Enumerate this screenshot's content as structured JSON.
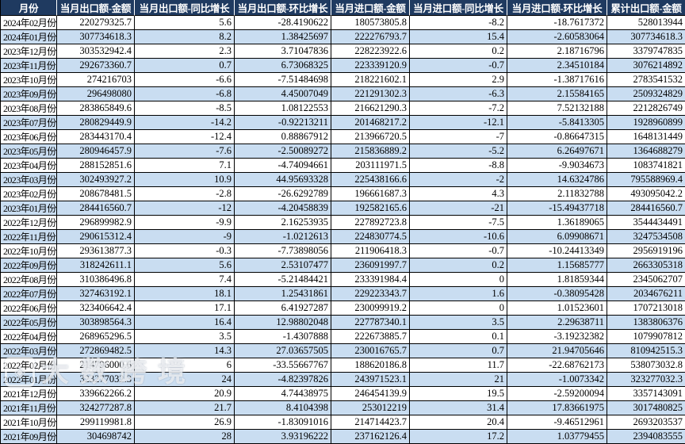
{
  "table": {
    "columns": [
      "月份",
      "当月出口额-金额",
      "当月出口额-同比增长",
      "当月出口额-环比增长",
      "当月进口额-金额",
      "当月进口额-同比增长",
      "当月进口额-环比增长",
      "累计出口额-金额"
    ],
    "rows": [
      [
        "2024年02月份",
        "220279325.7",
        "5.6",
        "-28.4190622",
        "180573805.8",
        "-8.2",
        "-18.7617372",
        "528013944"
      ],
      [
        "2024年01月份",
        "307734618.3",
        "8.2",
        "1.38425697",
        "222276793.7",
        "15.4",
        "-2.60583064",
        "307734618.3"
      ],
      [
        "2023年12月份",
        "303532942.4",
        "2.3",
        "3.71047836",
        "228223922.6",
        "0.2",
        "2.18716796",
        "3379747835"
      ],
      [
        "2023年11月份",
        "292673360.7",
        "0.7",
        "6.73068325",
        "223339120.9",
        "-0.7",
        "2.34510184",
        "3076214892"
      ],
      [
        "2023年10月份",
        "274216703",
        "-6.6",
        "-7.51484698",
        "218221602.1",
        "2.9",
        "-1.38717616",
        "2783541532"
      ],
      [
        "2023年09月份",
        "296498080",
        "-6.8",
        "4.45007049",
        "221291302.3",
        "-6.3",
        "2.15584165",
        "2509324829"
      ],
      [
        "2023年08月份",
        "283865849.6",
        "-8.5",
        "1.08122553",
        "216621290.3",
        "-7.2",
        "7.52132188",
        "2212826749"
      ],
      [
        "2023年07月份",
        "280829449.9",
        "-14.2",
        "-0.92213211",
        "201468217.2",
        "-12.1",
        "-5.8413305",
        "1928960899"
      ],
      [
        "2023年06月份",
        "283443170.4",
        "-12.4",
        "0.88867912",
        "213966720.5",
        "-7",
        "-0.86647315",
        "1648131449"
      ],
      [
        "2023年05月份",
        "280946457.9",
        "-7.6",
        "-2.50089272",
        "215836889.2",
        "-5.2",
        "6.26497671",
        "1364688279"
      ],
      [
        "2023年04月份",
        "288152851.6",
        "7.1",
        "-4.74094661",
        "203111971.5",
        "-8.8",
        "-9.9034673",
        "1083741821"
      ],
      [
        "2023年03月份",
        "302493927.2",
        "10.9",
        "44.95693328",
        "225438166.6",
        "-2",
        "14.6324786",
        "795588969.4"
      ],
      [
        "2023年02月份",
        "208678481.5",
        "-2.8",
        "-26.6292789",
        "196661687.3",
        "4.3",
        "2.11832788",
        "493095042.2"
      ],
      [
        "2023年01月份",
        "284416560.7",
        "-12",
        "-4.20458839",
        "192582165.6",
        "-21",
        "-15.49437718",
        "284416560.7"
      ],
      [
        "2022年12月份",
        "296899982.9",
        "-9.9",
        "2.16253935",
        "227892723.8",
        "-7.5",
        "1.36189065",
        "3544434491"
      ],
      [
        "2022年11月份",
        "290615312.4",
        "-9",
        "-1.0212613",
        "224830774.5",
        "-10.6",
        "6.09908671",
        "3247534508"
      ],
      [
        "2022年10月份",
        "293613877.3",
        "-0.3",
        "-7.73898056",
        "211906418.3",
        "-0.7",
        "-10.24413349",
        "2956919196"
      ],
      [
        "2022年09月份",
        "318242611.1",
        "5.6",
        "2.53107477",
        "236091997.7",
        "0.2",
        "1.15685777",
        "2663305318"
      ],
      [
        "2022年08月份",
        "310386496.8",
        "7.4",
        "-5.21484421",
        "233391984.4",
        "0",
        "1.81859344",
        "2345062707"
      ],
      [
        "2022年07月份",
        "327463192.1",
        "18.1",
        "1.25431861",
        "229223343.7",
        "1.6",
        "-0.38095428",
        "2034676211"
      ],
      [
        "2022年06月份",
        "323406642.4",
        "17.1",
        "6.41927287",
        "230099919.2",
        "0",
        "1.01523601",
        "1707213018"
      ],
      [
        "2022年05月份",
        "303898564.3",
        "16.4",
        "12.98802048",
        "227787340.1",
        "3.5",
        "2.29638711",
        "1383806376"
      ],
      [
        "2022年04月份",
        "268965296.5",
        "3.5",
        "-1.4307888",
        "222673885.7",
        "0.1",
        "-3.19232382",
        "1079907812"
      ],
      [
        "2022年03月份",
        "272869482.5",
        "14.3",
        "27.03657505",
        "230016765.7",
        "0.7",
        "21.94705646",
        "810942515.3"
      ],
      [
        "2022年02月份",
        "214796000.6",
        "6",
        "-33.55667767",
        "188620186.8",
        "11.7",
        "-22.68762173",
        "538073032.8"
      ],
      [
        "2022年01月份",
        "323277032.3",
        "24",
        "-4.82397826",
        "243971523.1",
        "21",
        "-1.0073342",
        "323277032.3"
      ],
      [
        "2021年12月份",
        "339662266.2",
        "20.9",
        "4.74438975",
        "246454139.9",
        "19.5",
        "-2.59200094",
        "3357143091"
      ],
      [
        "2021年11月份",
        "324277287.8",
        "21.7",
        "8.4104398",
        "253012219",
        "31.4",
        "17.83661975",
        "3017480825"
      ],
      [
        "2021年10月份",
        "299119981.8",
        "26.9",
        "-1.83091016",
        "214714423.7",
        "20.4",
        "-9.46512961",
        "2693203537"
      ],
      [
        "2021年09月份",
        "304698742",
        "28",
        "3.93196222",
        "237162126.4",
        "17.2",
        "1.03779455",
        "2394083555"
      ]
    ]
  },
  "watermark": {
    "logo_glyph": "◈",
    "text": "大数跨境"
  },
  "colors": {
    "header_bg": "#1F3A60",
    "header_text": "#FFFFFF",
    "row_bg": "#FFFFFF",
    "row_alt_bg": "#C9DDF1",
    "border": "#000000"
  }
}
